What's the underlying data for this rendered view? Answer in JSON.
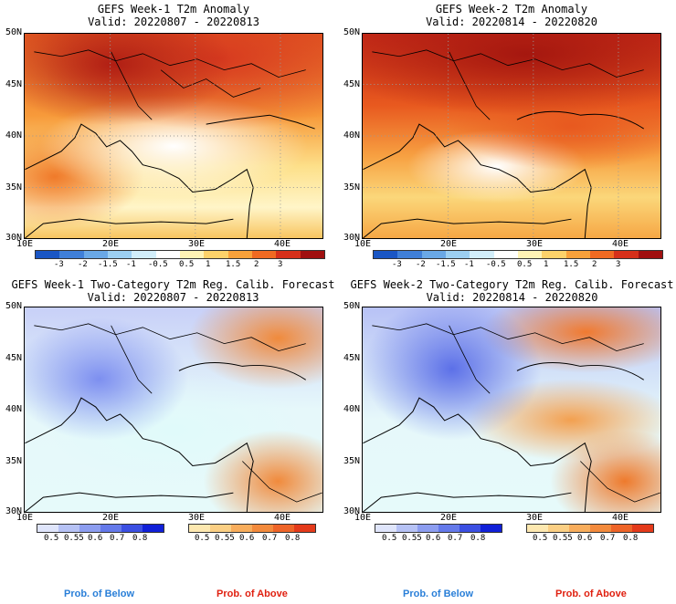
{
  "panels": [
    {
      "line1": "GEFS Week-1 T2m Anomaly",
      "line2": "Valid: 20220807 - 20220813"
    },
    {
      "line1": "GEFS Week-2 T2m Anomaly",
      "line2": "Valid: 20220814 - 20220820"
    },
    {
      "line1": "GEFS Week-1 Two-Category T2m Reg. Calib. Forecast",
      "line2": "Valid: 20220807 - 20220813"
    },
    {
      "line1": "GEFS Week-2 Two-Category T2m Reg. Calib. Forecast",
      "line2": "Valid: 20220814 - 20220820"
    }
  ],
  "axes": {
    "lat": [
      "50N",
      "45N",
      "40N",
      "35N",
      "30N"
    ],
    "lon": [
      "10E",
      "20E",
      "30E",
      "40E"
    ]
  },
  "anomaly_colorbar": {
    "labels": [
      "-3",
      "-2",
      "-1.5",
      "-1",
      "-0.5",
      "0.5",
      "1",
      "1.5",
      "2",
      "3"
    ],
    "colors": [
      "#1a56c4",
      "#3f7fd8",
      "#6aa8e6",
      "#9ccff2",
      "#d2eefa",
      "#ffffff",
      "#fff3b5",
      "#fdd26a",
      "#f9a13a",
      "#f06a22",
      "#d6301a",
      "#a01010"
    ]
  },
  "prob_colorbars": {
    "below": {
      "labels": [
        "0.5",
        "0.55",
        "0.6",
        "0.7",
        "0.8"
      ],
      "colors": [
        "#dfe5fb",
        "#b6c2f5",
        "#8c9df0",
        "#6479ea",
        "#3b4fe2",
        "#1020d8"
      ]
    },
    "above": {
      "labels": [
        "0.5",
        "0.55",
        "0.6",
        "0.7",
        "0.8"
      ],
      "colors": [
        "#fde8b0",
        "#fbcf84",
        "#f8ad5c",
        "#f38a3c",
        "#ee6428",
        "#e43a1a"
      ]
    }
  },
  "legend": {
    "below": "Prob. of Below",
    "above": "Prob. of Above",
    "below_color": "#2a7fd8",
    "above_color": "#e02010"
  }
}
